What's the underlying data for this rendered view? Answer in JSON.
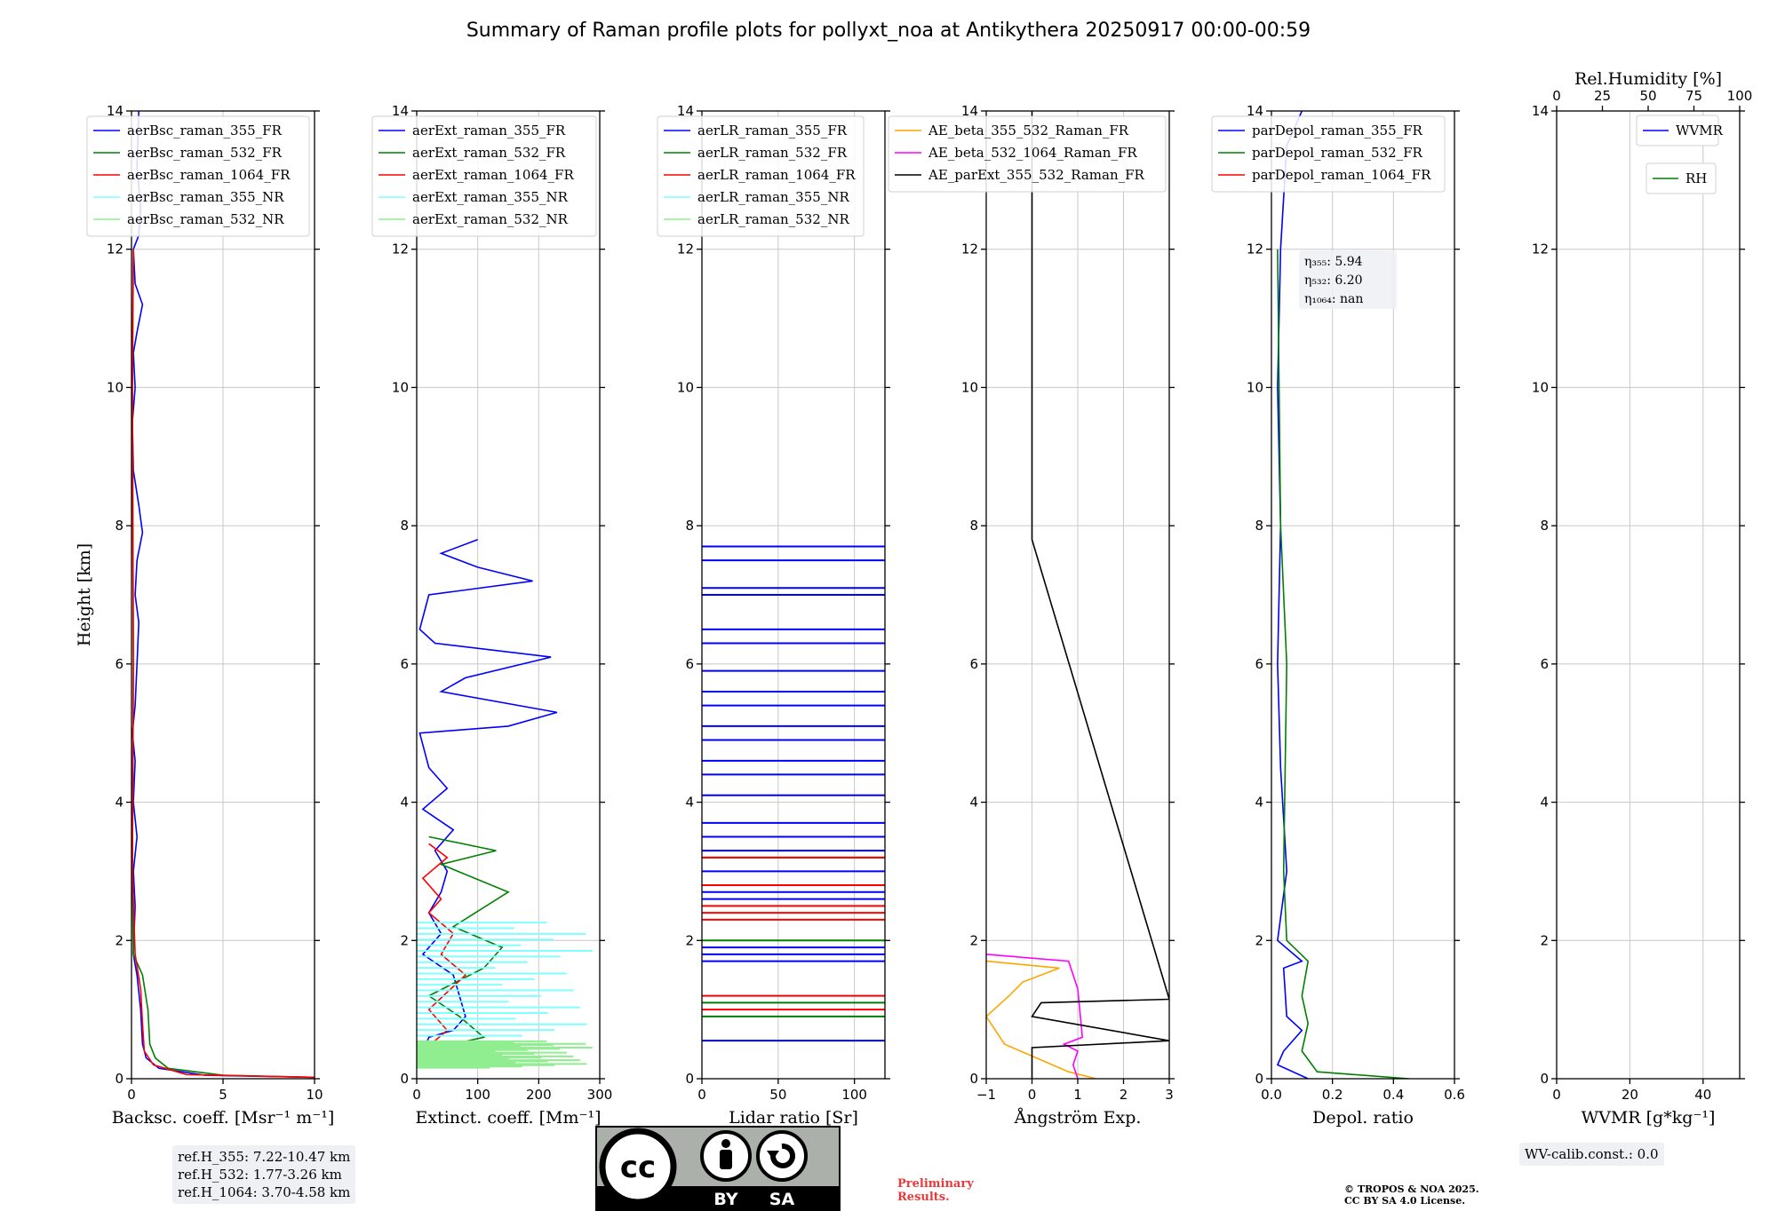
{
  "title": "Summary of Raman profile plots for pollyxt_noa at Antikythera 20250917 00:00-00:59",
  "y_label": "Height [km]",
  "ref_heights": [
    "ref.H_355: 7.22-10.47 km",
    "ref.H_532: 1.77-3.26 km",
    "ref.H_1064: 3.70-4.58 km"
  ],
  "wv_calib": "WV-calib.const.: 0.0",
  "preliminary": [
    "Preliminary",
    "Results."
  ],
  "copyright": [
    "© TROPOS & NOA 2025.",
    "CC BY SA 4.0 License."
  ],
  "license_badge": {
    "by": "BY",
    "sa": "SA"
  },
  "colors": {
    "blue": "#0000ff",
    "green": "#008000",
    "red": "#ff0000",
    "cyan": "#7fffff",
    "lightgreen": "#90ee90",
    "orange": "#ffa500",
    "magenta": "#ff00ff",
    "black": "#000000"
  },
  "chart_data": [
    {
      "type": "line",
      "id": "backscatter",
      "xlabel": "Backsc. coeff. [Msr⁻¹ m⁻¹]",
      "xlim": [
        0,
        10
      ],
      "ylim": [
        0,
        14
      ],
      "xticks": [
        0,
        5,
        10
      ],
      "yticks": [
        0,
        2,
        4,
        6,
        8,
        10,
        12,
        14
      ],
      "legend": [
        "aerBsc_raman_355_FR",
        "aerBsc_raman_532_FR",
        "aerBsc_raman_1064_FR",
        "aerBsc_raman_355_NR",
        "aerBsc_raman_532_NR"
      ],
      "series": [
        {
          "name": "aerBsc_raman_355_FR",
          "color": "blue",
          "points": [
            [
              10,
              0.02
            ],
            [
              4,
              0.05
            ],
            [
              1.5,
              0.15
            ],
            [
              0.8,
              0.3
            ],
            [
              0.6,
              0.5
            ],
            [
              0.5,
              1.0
            ],
            [
              0.3,
              1.5
            ],
            [
              0.1,
              1.8
            ],
            [
              0.2,
              2.5
            ],
            [
              0.1,
              3
            ],
            [
              0.3,
              3.5
            ],
            [
              0.1,
              4
            ],
            [
              0.2,
              4.6
            ],
            [
              0.05,
              5
            ],
            [
              0.2,
              5.4
            ],
            [
              0.3,
              6
            ],
            [
              0.4,
              6.6
            ],
            [
              0.2,
              7
            ],
            [
              0.3,
              7.5
            ],
            [
              0.6,
              7.9
            ],
            [
              0.4,
              8.3
            ],
            [
              0.1,
              8.8
            ],
            [
              0.05,
              9.5
            ],
            [
              0.2,
              10
            ],
            [
              0.1,
              10.5
            ],
            [
              0.3,
              10.8
            ],
            [
              0.6,
              11.2
            ],
            [
              0.2,
              11.5
            ],
            [
              0.1,
              12
            ],
            [
              0.4,
              12.2
            ],
            [
              0.5,
              12.6
            ],
            [
              0.3,
              13.2
            ],
            [
              0.4,
              14
            ]
          ]
        },
        {
          "name": "aerBsc_raman_532_FR",
          "color": "green",
          "points": [
            [
              10,
              0.02
            ],
            [
              5,
              0.05
            ],
            [
              2,
              0.15
            ],
            [
              1.3,
              0.3
            ],
            [
              1.0,
              0.5
            ],
            [
              0.9,
              1.0
            ],
            [
              0.6,
              1.5
            ],
            [
              0.1,
              1.8
            ],
            [
              0.05,
              3
            ],
            [
              0.1,
              6
            ],
            [
              0.05,
              10
            ],
            [
              0.1,
              12
            ]
          ]
        },
        {
          "name": "aerBsc_raman_1064_FR",
          "color": "red",
          "points": [
            [
              10,
              0.02
            ],
            [
              3,
              0.06
            ],
            [
              1.2,
              0.2
            ],
            [
              0.7,
              0.4
            ],
            [
              0.6,
              0.8
            ],
            [
              0.5,
              1.3
            ],
            [
              0.2,
              1.8
            ],
            [
              0.05,
              3
            ],
            [
              0.1,
              6
            ],
            [
              0.05,
              10
            ],
            [
              0.1,
              12
            ]
          ]
        }
      ]
    },
    {
      "type": "line",
      "id": "extinction",
      "xlabel": "Extinct. coeff. [Mm⁻¹]",
      "xlim": [
        0,
        300
      ],
      "ylim": [
        0,
        14
      ],
      "xticks": [
        0,
        100,
        200,
        300
      ],
      "yticks": [
        0,
        2,
        4,
        6,
        8,
        10,
        12,
        14
      ],
      "legend": [
        "aerExt_raman_355_FR",
        "aerExt_raman_532_FR",
        "aerExt_raman_1064_FR",
        "aerExt_raman_355_NR",
        "aerExt_raman_532_NR"
      ],
      "series": [
        {
          "name": "aerExt_raman_355_FR",
          "color": "blue",
          "points": [
            [
              10,
              0.4
            ],
            [
              20,
              0.6
            ],
            [
              60,
              0.7
            ],
            [
              80,
              0.9
            ],
            [
              70,
              1.2
            ],
            [
              60,
              1.5
            ],
            [
              10,
              1.8
            ],
            [
              40,
              2.1
            ],
            [
              20,
              2.4
            ],
            [
              40,
              2.7
            ],
            [
              50,
              3.0
            ],
            [
              30,
              3.3
            ],
            [
              60,
              3.6
            ],
            [
              10,
              3.9
            ],
            [
              50,
              4.2
            ],
            [
              20,
              4.5
            ],
            [
              5,
              5.0
            ],
            [
              150,
              5.1
            ],
            [
              230,
              5.3
            ],
            [
              40,
              5.6
            ],
            [
              80,
              5.8
            ],
            [
              220,
              6.1
            ],
            [
              30,
              6.3
            ],
            [
              5,
              6.5
            ],
            [
              20,
              7.0
            ],
            [
              190,
              7.2
            ],
            [
              100,
              7.4
            ],
            [
              40,
              7.6
            ],
            [
              100,
              7.8
            ]
          ]
        },
        {
          "name": "aerExt_raman_532_FR",
          "color": "green",
          "points": [
            [
              10,
              0.4
            ],
            [
              110,
              0.6
            ],
            [
              70,
              0.9
            ],
            [
              20,
              1.2
            ],
            [
              110,
              1.6
            ],
            [
              140,
              1.9
            ],
            [
              60,
              2.2
            ],
            [
              150,
              2.7
            ],
            [
              40,
              3.1
            ],
            [
              130,
              3.3
            ],
            [
              20,
              3.5
            ]
          ]
        },
        {
          "name": "aerExt_raman_1064_FR",
          "color": "red",
          "points": [
            [
              10,
              0.4
            ],
            [
              50,
              0.7
            ],
            [
              20,
              1.0
            ],
            [
              80,
              1.5
            ],
            [
              40,
              1.8
            ],
            [
              60,
              2.1
            ],
            [
              20,
              2.4
            ],
            [
              40,
              2.6
            ],
            [
              10,
              2.9
            ],
            [
              50,
              3.2
            ],
            [
              20,
              3.4
            ]
          ]
        },
        {
          "name": "aerExt_raman_355_NR",
          "color": "cyan",
          "band": [
            0.5,
            2.3
          ]
        },
        {
          "name": "aerExt_raman_532_NR",
          "color": "lightgreen",
          "band": [
            0.15,
            0.55
          ]
        }
      ]
    },
    {
      "type": "line",
      "id": "lidar_ratio",
      "xlabel": "Lidar ratio [Sr]",
      "xlim": [
        0,
        120
      ],
      "ylim": [
        0,
        14
      ],
      "xticks": [
        0,
        50,
        100
      ],
      "yticks": [
        0,
        2,
        4,
        6,
        8,
        10,
        12,
        14
      ],
      "legend": [
        "aerLR_raman_355_FR",
        "aerLR_raman_532_FR",
        "aerLR_raman_1064_FR",
        "aerLR_raman_355_NR",
        "aerLR_raman_532_NR"
      ],
      "series": [
        {
          "name": "aerLR_raman_355_FR",
          "color": "blue",
          "hlines": [
            0.55,
            1.7,
            1.8,
            1.9,
            2.6,
            2.7,
            3.0,
            3.3,
            3.5,
            3.7,
            4.1,
            4.4,
            4.6,
            4.9,
            5.1,
            5.4,
            5.6,
            5.9,
            6.3,
            6.5,
            7.0,
            7.1,
            7.5,
            7.7
          ]
        },
        {
          "name": "aerLR_raman_532_FR",
          "color": "green",
          "hlines": [
            0.9,
            1.1,
            2.0,
            3.2
          ]
        },
        {
          "name": "aerLR_raman_1064_FR",
          "color": "red",
          "hlines": [
            1.0,
            1.2,
            2.3,
            2.4,
            2.5,
            2.8,
            3.2
          ]
        }
      ]
    },
    {
      "type": "line",
      "id": "angstrom",
      "xlabel": "Ångström Exp.",
      "xlim": [
        -1,
        3
      ],
      "ylim": [
        0,
        14
      ],
      "xticks": [
        -1,
        0,
        1,
        2,
        3
      ],
      "yticks": [
        0,
        2,
        4,
        6,
        8,
        10,
        12,
        14
      ],
      "legend": [
        "AE_beta_355_532_Raman_FR",
        "AE_beta_532_1064_Raman_FR",
        "AE_parExt_355_532_Raman_FR"
      ],
      "series": [
        {
          "name": "AE_beta_355_532_Raman_FR",
          "color": "orange",
          "points": [
            [
              1.4,
              0
            ],
            [
              0.8,
              0.1
            ],
            [
              -0.6,
              0.5
            ],
            [
              -1,
              0.9
            ],
            [
              -0.5,
              1.2
            ],
            [
              -0.2,
              1.4
            ],
            [
              0.6,
              1.6
            ],
            [
              -1,
              1.7
            ]
          ]
        },
        {
          "name": "AE_beta_532_1064_Raman_FR",
          "color": "magenta",
          "points": [
            [
              -1,
              1.8
            ],
            [
              0.8,
              1.7
            ],
            [
              1.0,
              1.3
            ],
            [
              1.1,
              0.6
            ],
            [
              0.7,
              0.5
            ],
            [
              1.0,
              0.4
            ],
            [
              0.9,
              0.2
            ],
            [
              1.0,
              0
            ]
          ]
        },
        {
          "name": "AE_parExt_355_532_Raman_FR",
          "color": "black",
          "points": [
            [
              0,
              0
            ],
            [
              0,
              0.45
            ],
            [
              3,
              0.55
            ],
            [
              0,
              0.9
            ],
            [
              0.2,
              1.1
            ],
            [
              3,
              1.15
            ],
            [
              0,
              7.8
            ],
            [
              0,
              14
            ]
          ]
        }
      ]
    },
    {
      "type": "line",
      "id": "depol",
      "xlabel": "Depol. ratio",
      "xlim": [
        0,
        0.6
      ],
      "ylim": [
        0,
        14
      ],
      "xticks": [
        0.0,
        0.2,
        0.4,
        0.6
      ],
      "yticks": [
        0,
        2,
        4,
        6,
        8,
        10,
        12,
        14
      ],
      "legend": [
        "parDepol_raman_355_FR",
        "parDepol_raman_532_FR",
        "parDepol_raman_1064_FR"
      ],
      "annotations": [
        "η₃₅₅: 5.94",
        "η₅₃₂: 6.20",
        "η₁₀₆₄: nan"
      ],
      "series": [
        {
          "name": "parDepol_raman_355_FR",
          "color": "blue",
          "points": [
            [
              0.12,
              0
            ],
            [
              0.02,
              0.2
            ],
            [
              0.04,
              0.4
            ],
            [
              0.06,
              0.5
            ],
            [
              0.1,
              0.7
            ],
            [
              0.05,
              0.9
            ],
            [
              0.04,
              1.6
            ],
            [
              0.1,
              1.7
            ],
            [
              0.02,
              2
            ],
            [
              0.05,
              3
            ],
            [
              0.03,
              4.5
            ],
            [
              0.02,
              6
            ],
            [
              0.03,
              8
            ],
            [
              0.02,
              10
            ],
            [
              0.03,
              12
            ],
            [
              0.05,
              13.5
            ],
            [
              0.1,
              14
            ]
          ]
        },
        {
          "name": "parDepol_raman_532_FR",
          "color": "green",
          "points": [
            [
              0.45,
              0
            ],
            [
              0.15,
              0.1
            ],
            [
              0.1,
              0.4
            ],
            [
              0.12,
              0.8
            ],
            [
              0.1,
              1.2
            ],
            [
              0.12,
              1.7
            ],
            [
              0.05,
              2
            ],
            [
              0.04,
              3
            ],
            [
              0.05,
              6
            ],
            [
              0.03,
              8
            ],
            [
              0.02,
              12
            ]
          ]
        }
      ]
    },
    {
      "type": "line",
      "id": "wvmr",
      "xlabel": "WVMR [g*kg⁻¹]",
      "x2label": "Rel.Humidity [%]",
      "xlim": [
        0,
        50
      ],
      "x2lim": [
        0,
        100
      ],
      "ylim": [
        0,
        14
      ],
      "xticks": [
        0,
        20,
        40
      ],
      "x2ticks": [
        0,
        25,
        50,
        75,
        100
      ],
      "yticks": [
        0,
        2,
        4,
        6,
        8,
        10,
        12,
        14
      ],
      "legend": [
        "WVMR",
        "RH"
      ],
      "series": []
    }
  ]
}
